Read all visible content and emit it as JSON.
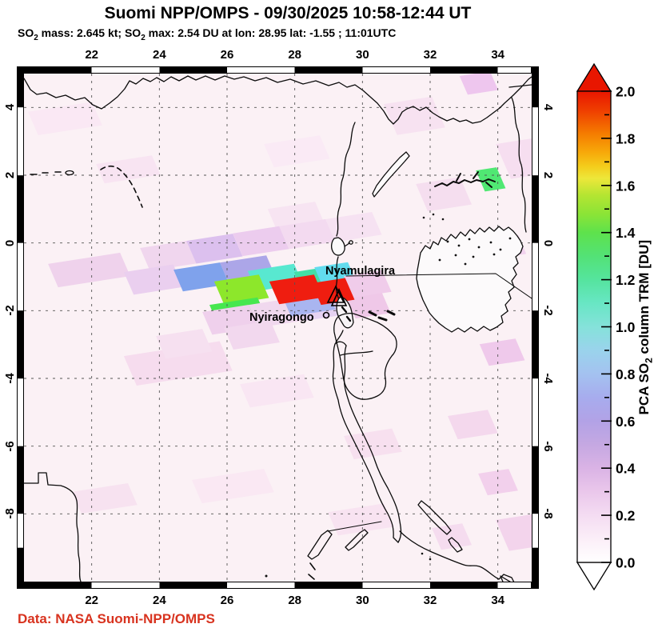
{
  "header": {
    "title": "Suomi NPP/OMPS - 09/30/2025 10:58-12:44 UT",
    "subtitle": {
      "p1": "SO",
      "sub1": "2",
      "p2": " mass: 2.645 kt; SO",
      "sub2": "2",
      "p3": " max: 2.54 DU at lon: 28.95 lat: -1.55 ; 11:01UTC"
    }
  },
  "footer": {
    "credit": "Data: NASA Suomi-NPP/OMPS",
    "credit_color": "#D8331F"
  },
  "axes": {
    "lon_ticks": [
      22,
      24,
      26,
      28,
      30,
      32,
      34
    ],
    "lat_ticks": [
      4,
      2,
      0,
      -2,
      -4,
      -6,
      -8
    ],
    "lon_range": [
      20,
      35
    ],
    "lat_range": [
      -10,
      5
    ],
    "grid": "dashed"
  },
  "colorbar": {
    "title_p1": "PCA SO",
    "title_sub": "2",
    "title_p2": " column TRM [DU]",
    "tick_labels": [
      "2.0",
      "1.8",
      "1.6",
      "1.4",
      "1.2",
      "1.0",
      "0.8",
      "0.6",
      "0.4",
      "0.2",
      "0.0"
    ],
    "range": [
      0.0,
      2.0
    ],
    "over_color": "#E81600",
    "under_color": "#FFFFFF"
  },
  "volcanoes": [
    {
      "name": "Nyamulagira"
    },
    {
      "name": "Nyiragongo"
    }
  ],
  "chart_data": {
    "type": "heatmap",
    "title": "Suomi NPP/OMPS PCA SO2 column TRM [DU]",
    "so2_mass_kt": 2.645,
    "so2_max_du": 2.54,
    "so2_max_lon": 28.95,
    "so2_max_lat": -1.55,
    "overpass_time": "11:01UTC",
    "lon_range": [
      20,
      35
    ],
    "lat_range": [
      -10,
      5
    ],
    "cells": [
      {
        "lon": 20.12,
        "lat": 3.87,
        "w": 1.89,
        "h": 0.71,
        "c": "#FAE8F4"
      },
      {
        "lon": 22.13,
        "lat": 2.33,
        "w": 1.65,
        "h": 0.59,
        "c": "#F8E4F2"
      },
      {
        "lon": 27.09,
        "lat": 2.92,
        "w": 1.65,
        "h": 0.71,
        "c": "#FAEAF5"
      },
      {
        "lon": 30.63,
        "lat": 4.1,
        "w": 1.42,
        "h": 0.94,
        "c": "#F7E2F1"
      },
      {
        "lon": 33.94,
        "lat": 2.92,
        "w": 1.06,
        "h": 1.06,
        "c": "#F6DEF0"
      },
      {
        "lon": 32.87,
        "lat": 4.93,
        "w": 0.9,
        "h": 0.57,
        "c": "#EEC6EE"
      },
      {
        "lon": 31.58,
        "lat": 1.74,
        "w": 1.3,
        "h": 0.83,
        "c": "#F5DEEF"
      },
      {
        "lon": 20.71,
        "lat": -0.62,
        "w": 2.13,
        "h": 0.71,
        "c": "#EFD2EC"
      },
      {
        "lon": 33.7,
        "lat": 0.09,
        "w": 0.9,
        "h": 0.57,
        "c": "#F2D2EE"
      },
      {
        "lon": 22.95,
        "lat": -3.34,
        "w": 2.83,
        "h": 0.9,
        "c": "#F6DCEE"
      },
      {
        "lon": 26.38,
        "lat": -4.17,
        "w": 1.89,
        "h": 0.71,
        "c": "#F9E6F3"
      },
      {
        "lon": 32.52,
        "lat": -5.11,
        "w": 1.18,
        "h": 0.71,
        "c": "#F4D8ED"
      },
      {
        "lon": 33.46,
        "lat": -2.99,
        "w": 1.06,
        "h": 0.66,
        "c": "#EFC9EB"
      },
      {
        "lon": 29.45,
        "lat": -5.7,
        "w": 1.42,
        "h": 0.71,
        "c": "#F7E0EF"
      },
      {
        "lon": 28.98,
        "lat": -7.95,
        "w": 1.65,
        "h": 0.71,
        "c": "#F8E3F1"
      },
      {
        "lon": 21.42,
        "lat": -7.35,
        "w": 1.65,
        "h": 0.66,
        "c": "#F7E2F0"
      },
      {
        "lon": 24.96,
        "lat": -7.0,
        "w": 2.13,
        "h": 0.71,
        "c": "#FAE8F3"
      },
      {
        "lon": 32.05,
        "lat": -8.42,
        "w": 0.9,
        "h": 0.66,
        "c": "#F5DCEF"
      },
      {
        "lon": 33.42,
        "lat": -6.81,
        "w": 0.9,
        "h": 0.66,
        "c": "#F2D0EC"
      },
      {
        "lon": 33.94,
        "lat": -8.18,
        "w": 1.06,
        "h": 0.94,
        "c": "#F3D4EC"
      },
      {
        "lon": 27.2,
        "lat": 1.0,
        "w": 1.4,
        "h": 0.7,
        "c": "#F7E4F2"
      },
      {
        "lon": 23.43,
        "lat": -0.15,
        "w": 1.37,
        "h": 0.69,
        "c": "#F0D6EE"
      },
      {
        "lon": 24.8,
        "lat": 0.06,
        "w": 1.37,
        "h": 0.69,
        "c": "#DCC0EE",
        "du": 0.4
      },
      {
        "lon": 26.17,
        "lat": 0.28,
        "w": 1.37,
        "h": 0.69,
        "c": "#ECCCEE",
        "du": 0.3
      },
      {
        "lon": 27.54,
        "lat": 0.49,
        "w": 1.37,
        "h": 0.69,
        "c": "#F3DAF0"
      },
      {
        "lon": 28.91,
        "lat": 0.7,
        "w": 1.37,
        "h": 0.69,
        "c": "#F6E2F2"
      },
      {
        "lon": 22.95,
        "lat": -0.86,
        "w": 1.46,
        "h": 0.69,
        "c": "#EACFEF",
        "du": 0.3
      },
      {
        "lon": 24.42,
        "lat": -0.79,
        "w": 1.37,
        "h": 0.66,
        "c": "#7FA2EC",
        "du": 0.78
      },
      {
        "lon": 25.79,
        "lat": -0.58,
        "w": 1.37,
        "h": 0.66,
        "c": "#ACA6E8",
        "du": 0.62
      },
      {
        "lon": 26.61,
        "lat": -0.83,
        "w": 1.37,
        "h": 0.61,
        "c": "#58E8D0",
        "du": 1.05
      },
      {
        "lon": 27.98,
        "lat": -0.86,
        "w": 1.32,
        "h": 0.59,
        "c": "#43DFA6",
        "du": 1.18
      },
      {
        "lon": 28.58,
        "lat": -0.72,
        "w": 0.99,
        "h": 0.59,
        "c": "#62DCEE",
        "du": 1.0
      },
      {
        "lon": 25.62,
        "lat": -1.14,
        "w": 1.32,
        "h": 0.71,
        "c": "#8DE72B",
        "du": 1.55
      },
      {
        "lon": 25.48,
        "lat": -1.83,
        "w": 1.42,
        "h": 0.71,
        "c": "#47E74F",
        "du": 1.45
      },
      {
        "lon": 25.27,
        "lat": -2.04,
        "w": 1.37,
        "h": 0.69,
        "c": "#EFD0EC",
        "du": 0.3
      },
      {
        "lon": 26.64,
        "lat": -1.83,
        "w": 1.37,
        "h": 0.69,
        "c": "#F0D8EE",
        "du": 0.25
      },
      {
        "lon": 28.01,
        "lat": -1.66,
        "w": 1.37,
        "h": 0.66,
        "c": "#E6D2F2",
        "du": 0.35
      },
      {
        "lon": 23.9,
        "lat": -2.75,
        "w": 1.37,
        "h": 0.69,
        "c": "#F6E0F0"
      },
      {
        "lon": 25.91,
        "lat": -2.51,
        "w": 1.37,
        "h": 0.66,
        "c": "#F2D8EE"
      },
      {
        "lon": 29.45,
        "lat": -0.98,
        "w": 1.13,
        "h": 0.66,
        "c": "#F0CCEA"
      },
      {
        "lon": 29.54,
        "lat": -1.64,
        "w": 1.04,
        "h": 0.61,
        "c": "#EFC8E8"
      },
      {
        "lon": 27.72,
        "lat": -1.78,
        "w": 1.32,
        "h": 0.4,
        "c": "#A9B5F0",
        "du": 0.72
      },
      {
        "lon": 27.25,
        "lat": -1.14,
        "w": 1.32,
        "h": 0.69,
        "c": "#EF1D10",
        "du": 2.3
      },
      {
        "lon": 28.5,
        "lat": -1.19,
        "w": 0.99,
        "h": 0.66,
        "c": "#EF1D10",
        "du": 2.54
      },
      {
        "lon": 33.35,
        "lat": 2.14,
        "w": 0.61,
        "h": 0.64,
        "c": "#50E873",
        "du": 1.6
      }
    ]
  }
}
